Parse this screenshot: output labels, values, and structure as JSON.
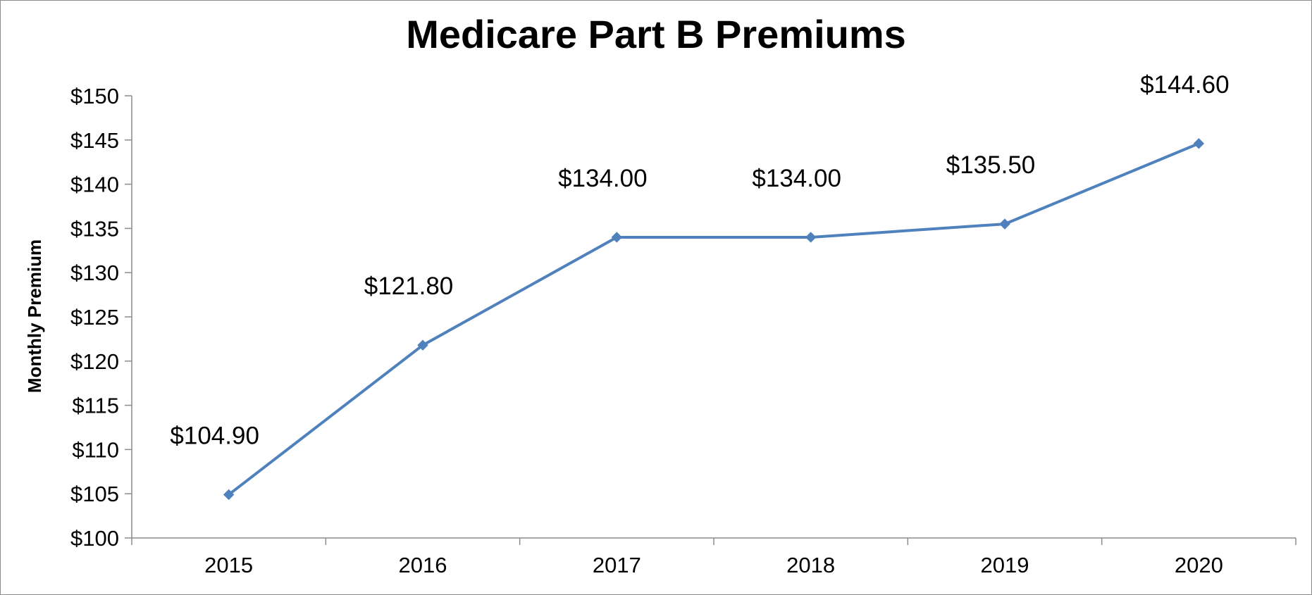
{
  "chart_data": {
    "type": "line",
    "title": "Medicare Part B Premiums",
    "xlabel": "",
    "ylabel": "Monthly Premium",
    "categories": [
      "2015",
      "2016",
      "2017",
      "2018",
      "2019",
      "2020"
    ],
    "series": [
      {
        "values": [
          104.9,
          121.8,
          134.0,
          134.0,
          135.5,
          144.6
        ],
        "color": "#4f81bd",
        "marker": "diamond"
      }
    ],
    "data_labels": [
      "$104.90",
      "$121.80",
      "$134.00",
      "$134.00",
      "$135.50",
      "$144.60"
    ],
    "ylim": [
      100,
      150
    ],
    "y_ticks": [
      100,
      105,
      110,
      115,
      120,
      125,
      130,
      135,
      140,
      145,
      150
    ],
    "y_tick_labels": [
      "$100",
      "$105",
      "$110",
      "$115",
      "$120",
      "$125",
      "$130",
      "$135",
      "$140",
      "$145",
      "$150"
    ],
    "grid": false,
    "legend": "none",
    "colors": {
      "line": "#4f81bd",
      "axis": "#8c8c8c",
      "text": "#000000"
    }
  }
}
